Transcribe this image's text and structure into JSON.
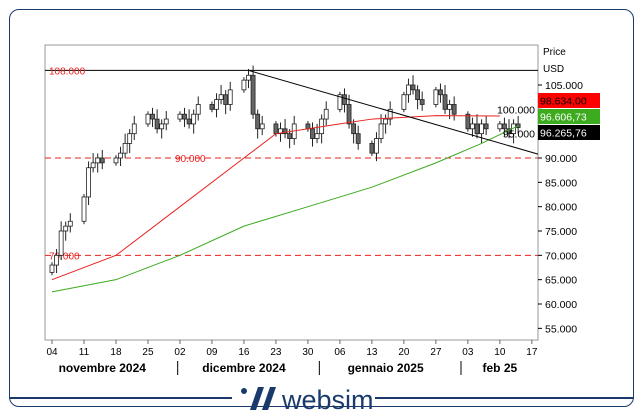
{
  "chart_data": {
    "type": "candlestick",
    "currency_label": "Price",
    "unit_label": "USD",
    "ylim": [
      53000,
      112000
    ],
    "y_ticks": [
      "105.000",
      "100.000",
      "95.000",
      "90.000",
      "85.000",
      "80.000",
      "75.000",
      "70.000",
      "65.000",
      "60.000",
      "55.000"
    ],
    "y_tick_values": [
      105000,
      100000,
      95000,
      90000,
      85000,
      80000,
      75000,
      70000,
      65000,
      60000,
      55000
    ],
    "x_ticks": [
      "04",
      "11",
      "18",
      "25",
      "02",
      "09",
      "16",
      "23",
      "30",
      "06",
      "13",
      "20",
      "27",
      "03",
      "10",
      "17"
    ],
    "months": [
      "novembre 2024",
      "dicembre 2024",
      "gennaio 2025",
      "feb 25"
    ],
    "start_date": "2024-11-04",
    "closes": [
      68000,
      70000,
      75000,
      76000,
      77000,
      82000,
      88000,
      89000,
      90000,
      89000,
      90000,
      91000,
      93000,
      95000,
      97000,
      99000,
      98000,
      96000,
      97000,
      98000,
      99000,
      98000,
      97000,
      99000,
      101000,
      100000,
      102000,
      103000,
      101000,
      104000,
      106000,
      107000,
      99000,
      96000,
      97000,
      95000,
      96000,
      95000,
      94000,
      97000,
      96000,
      94000,
      95000,
      98000,
      100000,
      103000,
      101000,
      97000,
      95000,
      93000,
      91000,
      94000,
      97000,
      98000,
      100000,
      103000,
      105000,
      104000,
      102000,
      101000,
      104000,
      103000,
      100000,
      101000,
      99000,
      96000,
      97000,
      95000,
      97000,
      96000,
      97000,
      96000,
      95000,
      97000,
      96266
    ],
    "ma_red": [
      [
        0,
        65000
      ],
      [
        14,
        70000
      ],
      [
        28,
        80000
      ],
      [
        42,
        90000
      ],
      [
        49,
        95000
      ],
      [
        63,
        97000
      ],
      [
        70,
        98000
      ],
      [
        84,
        98700
      ],
      [
        98,
        98634
      ]
    ],
    "ma_green": [
      [
        0,
        62500
      ],
      [
        14,
        65000
      ],
      [
        28,
        70000
      ],
      [
        42,
        76000
      ],
      [
        56,
        80000
      ],
      [
        70,
        84000
      ],
      [
        84,
        89000
      ],
      [
        94,
        93000
      ],
      [
        102,
        96607
      ]
    ],
    "levels": [
      {
        "value": 108000,
        "label": "108.000",
        "style": "solid",
        "color": "#000000"
      },
      {
        "value": 90000,
        "label": "90.000",
        "style": "dashed",
        "color": "#e8231f"
      },
      {
        "value": 70000,
        "label": "70.000",
        "style": "dashed",
        "color": "#e8231f"
      }
    ],
    "trendline": [
      [
        43,
        108000
      ],
      [
        105,
        90800
      ]
    ],
    "badges": [
      {
        "label": "98.634,00",
        "value": 98634,
        "bg": "#ff0000",
        "fg": "#000000"
      },
      {
        "label": "96.606,73",
        "value": 96607,
        "bg": "#3cab1e",
        "fg": "#ffffff"
      },
      {
        "label": "96.265,76",
        "value": 96266,
        "bg": "#000000",
        "fg": "#ffffff"
      }
    ]
  },
  "logo": {
    "text": "websim"
  },
  "colors": {
    "red": "#e8231f",
    "green": "#3cab1e",
    "navy": "#1a3a6b"
  }
}
